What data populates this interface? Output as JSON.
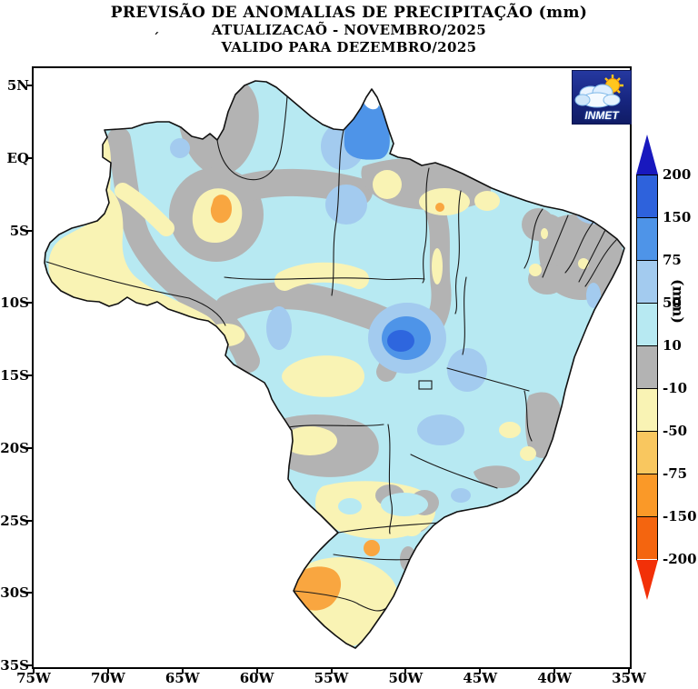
{
  "title": {
    "line1": "PREVISÃO DE ANOMALIAS DE PRECIPITAÇÃO (mm)",
    "line2": "ATUALIZACAÕ - NOVEMBRO/2025",
    "line3": "VALIDO PARA DEZEMBRO/2025",
    "stray_mark_left": "´",
    "stray_mark_under_o": "¸"
  },
  "logo": {
    "label": "INMET"
  },
  "axes": {
    "y_tick_labels": [
      "5N",
      "EQ",
      "5S",
      "10S",
      "15S",
      "20S",
      "25S",
      "30S",
      "35S"
    ],
    "x_tick_labels": [
      "75W",
      "70W",
      "65W",
      "60W",
      "55W",
      "50W",
      "45W",
      "40W",
      "35W"
    ]
  },
  "colorbar": {
    "unit_label": "(mm)",
    "tick_labels": [
      "200",
      "150",
      "75",
      "50",
      "10",
      "-10",
      "-50",
      "-75",
      "-150",
      "-200"
    ],
    "segment_colors_top_to_bottom": [
      "#2E62DC",
      "#4E94E8",
      "#A3CBEF",
      "#B7E9F2",
      "#B3B3B3",
      "#F9F3B4",
      "#F9C75F",
      "#FA9928",
      "#F4650F"
    ],
    "arrow_top_color": "#1818BE",
    "arrow_bottom_color": "#F23008"
  },
  "map": {
    "palette": {
      "above_200": "#1818BE",
      "150_to_200": "#2E62DC",
      "75_to_150": "#4E94E8",
      "50_to_75": "#A3CBEF",
      "10_to_50": "#B7E9F2",
      "minus10_to_10": "#B3B3B3",
      "minus50_to_minus10": "#F9F3B4",
      "minus75_to_minus50": "#F9C75F",
      "minus150_to_minus75": "#FA9928",
      "minus200_to_minus150": "#F4650F",
      "below_minus200": "#F23008"
    },
    "notable_regions": [
      {
        "area": "Amapá (far north)",
        "anomaly_mm": "75 to 150"
      },
      {
        "area": "Central Brazil (Tocantins/Goiás border)",
        "anomaly_mm": "75 to 150 core in 50-75 halo"
      },
      {
        "area": "Most of Amazônia, Northeast interior and Southeast",
        "anomaly_mm": "10 to 50"
      },
      {
        "area": "Western Amazonas and Acre",
        "anomaly_mm": "-10 to -50"
      },
      {
        "area": "Central Pará spot",
        "anomaly_mm": "-75 to -150 core"
      },
      {
        "area": "Northeast coastal tip and scattered bands",
        "anomaly_mm": "-10 to 10"
      },
      {
        "area": "Paraná / Santa Catarina / Rio Grande do Sul",
        "anomaly_mm": "-10 to -50"
      },
      {
        "area": "Western Rio Grande do Sul",
        "anomaly_mm": "-75 to -150"
      }
    ]
  }
}
